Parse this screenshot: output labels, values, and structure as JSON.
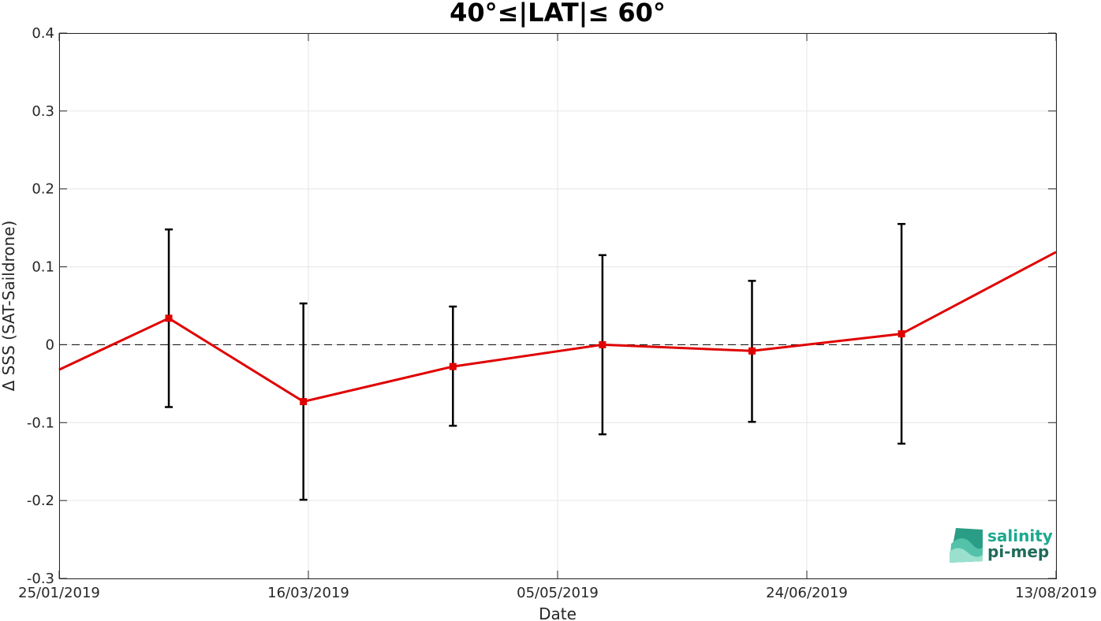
{
  "chart_data": {
    "type": "line",
    "title": "40°≤|LAT|≤ 60°",
    "xlabel": "Date",
    "ylabel": "Δ SSS (SAT-Saildrone)",
    "x_ticks": [
      "25/01/2019",
      "16/03/2019",
      "05/05/2019",
      "24/06/2019",
      "13/08/2019"
    ],
    "y_ticks": [
      "-0.3",
      "-0.2",
      "-0.1",
      "0",
      "0.1",
      "0.2",
      "0.3",
      "0.4"
    ],
    "xlim": [
      "2019-01-25",
      "2019-08-13"
    ],
    "ylim": [
      -0.3,
      0.4
    ],
    "grid": true,
    "reference_line": {
      "y": 0,
      "style": "dashed",
      "color": "#000000"
    },
    "series": [
      {
        "color": "#e00000",
        "x": [
          "2019-01-25",
          "2019-02-16",
          "2019-03-15",
          "2019-04-14",
          "2019-05-14",
          "2019-06-13",
          "2019-07-13",
          "2019-08-13"
        ],
        "y": [
          -0.032,
          0.034,
          -0.073,
          -0.028,
          0.0,
          -0.008,
          0.014,
          0.119
        ],
        "markers": [
          false,
          true,
          true,
          true,
          true,
          true,
          true,
          false
        ]
      }
    ],
    "error_bars": {
      "color": "#000000",
      "x": [
        "2019-02-16",
        "2019-03-15",
        "2019-04-14",
        "2019-05-14",
        "2019-06-13",
        "2019-07-13"
      ],
      "center": [
        0.034,
        -0.073,
        -0.028,
        0.0,
        -0.008,
        0.014
      ],
      "upper": [
        0.148,
        0.053,
        0.049,
        0.115,
        0.082,
        0.155
      ],
      "lower": [
        -0.08,
        -0.199,
        -0.104,
        -0.115,
        -0.099,
        -0.127
      ]
    }
  },
  "logo": {
    "line1": "salinity",
    "line2": "pi-mep",
    "color1": "#1aa98e",
    "color2": "#1f6b5a"
  }
}
